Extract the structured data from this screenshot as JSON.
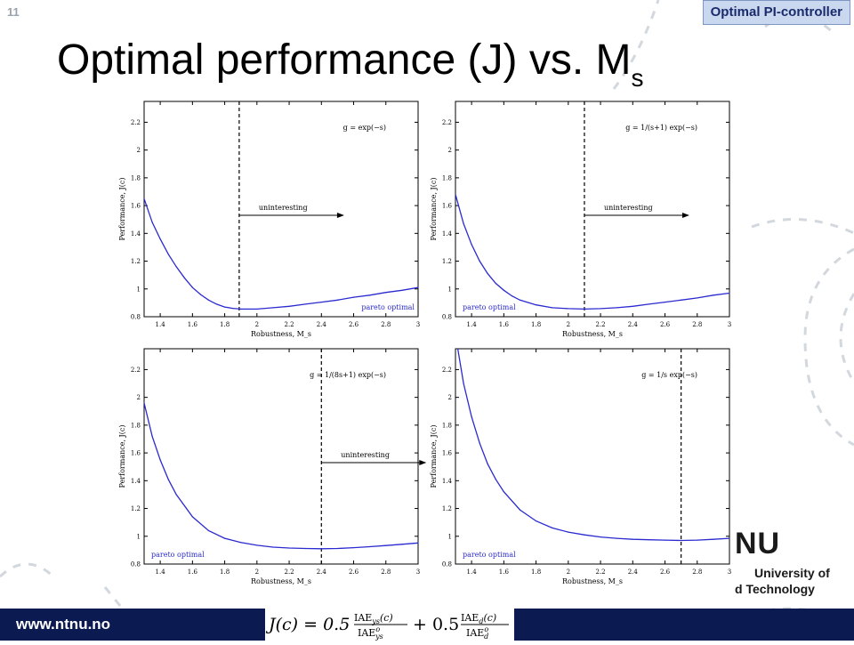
{
  "slide": {
    "number": "11",
    "section_tag": "Optimal PI-controller",
    "title_main": "Optimal performance (J) vs. M",
    "title_sub": "s"
  },
  "footer": {
    "url": "www.ntnu.no",
    "formula": {
      "lhs": "J(c) = 0.5",
      "term1_num": "IAE",
      "term1_num_sub": "ys",
      "term1_num_arg": "(c)",
      "term1_den": "IAE",
      "term1_den_sub": "ys",
      "term1_den_sup": "o",
      "plus": "+ 0.5",
      "term2_num": "IAE",
      "term2_num_sub": "d",
      "term2_num_arg": "(c)",
      "term2_den": "IAE",
      "term2_den_sub": "d",
      "term2_den_sup": "o"
    }
  },
  "logo": {
    "mark": "NU",
    "line1": "University of",
    "line2": "d Technology"
  },
  "colors": {
    "curve": "#2a2ad0",
    "annotation": "#2a2ad0",
    "footer_bg": "#0b1b52",
    "tag_bg": "#c9d8ee"
  },
  "chart_data": [
    {
      "type": "line",
      "xlabel": "Robustness, M_s",
      "ylabel": "Performance, J(c)",
      "xlim": [
        1.3,
        3.0
      ],
      "ylim": [
        0.8,
        2.35
      ],
      "xticks": [
        "1.4",
        "1.6",
        "1.8",
        "2",
        "2.2",
        "2.4",
        "2.6",
        "2.8",
        "3"
      ],
      "yticks": [
        "0.8",
        "1",
        "1.2",
        "1.4",
        "1.6",
        "1.8",
        "2",
        "2.2"
      ],
      "model_label": "g = exp(−s)",
      "pareto_label": "pareto optimal",
      "pareto_label_position": "bottom-right",
      "uninteresting_label": "uninteresting",
      "vline_x": 1.89,
      "x": [
        1.3,
        1.35,
        1.4,
        1.45,
        1.5,
        1.55,
        1.6,
        1.65,
        1.7,
        1.75,
        1.8,
        1.85,
        1.9,
        1.95,
        2.0,
        2.1,
        2.2,
        2.3,
        2.4,
        2.5,
        2.6,
        2.7,
        2.8,
        2.9,
        3.0
      ],
      "y": [
        1.65,
        1.48,
        1.36,
        1.25,
        1.16,
        1.08,
        1.01,
        0.96,
        0.92,
        0.89,
        0.87,
        0.86,
        0.855,
        0.855,
        0.855,
        0.865,
        0.875,
        0.89,
        0.905,
        0.92,
        0.94,
        0.955,
        0.975,
        0.99,
        1.01
      ]
    },
    {
      "type": "line",
      "xlabel": "Robustness, M_s",
      "ylabel": "Performance, J(c)",
      "xlim": [
        1.3,
        3.0
      ],
      "ylim": [
        0.8,
        2.35
      ],
      "xticks": [
        "1.4",
        "1.6",
        "1.8",
        "2",
        "2.2",
        "2.4",
        "2.6",
        "2.8",
        "3"
      ],
      "yticks": [
        "0.8",
        "1",
        "1.2",
        "1.4",
        "1.6",
        "1.8",
        "2",
        "2.2"
      ],
      "model_label": "g = 1/(s+1) exp(−s)",
      "pareto_label": "pareto optimal",
      "pareto_label_position": "bottom-left",
      "uninteresting_label": "uninteresting",
      "vline_x": 2.1,
      "x": [
        1.3,
        1.35,
        1.4,
        1.45,
        1.5,
        1.55,
        1.6,
        1.65,
        1.7,
        1.8,
        1.9,
        2.0,
        2.1,
        2.2,
        2.3,
        2.4,
        2.5,
        2.6,
        2.7,
        2.8,
        2.9,
        3.0
      ],
      "y": [
        1.68,
        1.47,
        1.32,
        1.2,
        1.11,
        1.04,
        0.99,
        0.95,
        0.92,
        0.885,
        0.865,
        0.858,
        0.855,
        0.858,
        0.865,
        0.875,
        0.89,
        0.905,
        0.92,
        0.935,
        0.955,
        0.97
      ]
    },
    {
      "type": "line",
      "xlabel": "Robustness, M_s",
      "ylabel": "Performance, J(c)",
      "xlim": [
        1.3,
        3.0
      ],
      "ylim": [
        0.8,
        2.35
      ],
      "xticks": [
        "1.4",
        "1.6",
        "1.8",
        "2",
        "2.2",
        "2.4",
        "2.6",
        "2.8",
        "3"
      ],
      "yticks": [
        "0.8",
        "1",
        "1.2",
        "1.4",
        "1.6",
        "1.8",
        "2",
        "2.2"
      ],
      "model_label": "g = 1/(8s+1) exp(−s)",
      "pareto_label": "pareto optimal",
      "pareto_label_position": "bottom-left",
      "uninteresting_label": "uninteresting",
      "vline_x": 2.4,
      "x": [
        1.3,
        1.35,
        1.4,
        1.45,
        1.5,
        1.6,
        1.7,
        1.8,
        1.9,
        2.0,
        2.1,
        2.2,
        2.3,
        2.4,
        2.5,
        2.6,
        2.7,
        2.8,
        2.9,
        3.0
      ],
      "y": [
        1.96,
        1.72,
        1.55,
        1.41,
        1.3,
        1.14,
        1.04,
        0.985,
        0.955,
        0.935,
        0.922,
        0.915,
        0.912,
        0.91,
        0.912,
        0.918,
        0.925,
        0.933,
        0.942,
        0.952
      ]
    },
    {
      "type": "line",
      "xlabel": "Robustness, M_s",
      "ylabel": "Performance, J(c)",
      "xlim": [
        1.3,
        3.0
      ],
      "ylim": [
        0.8,
        2.35
      ],
      "xticks": [
        "1.4",
        "1.6",
        "1.8",
        "2",
        "2.2",
        "2.4",
        "2.6",
        "2.8",
        "3"
      ],
      "yticks": [
        "0.8",
        "1",
        "1.2",
        "1.4",
        "1.6",
        "1.8",
        "2",
        "2.2"
      ],
      "model_label": "g = 1/s exp(−s)",
      "pareto_label": "pareto optimal",
      "pareto_label_position": "bottom-left",
      "uninteresting_label": "",
      "vline_x": 2.7,
      "x": [
        1.3,
        1.35,
        1.4,
        1.45,
        1.5,
        1.55,
        1.6,
        1.7,
        1.8,
        1.9,
        2.0,
        2.1,
        2.2,
        2.3,
        2.4,
        2.5,
        2.6,
        2.7,
        2.8,
        2.9,
        3.0
      ],
      "y": [
        2.45,
        2.1,
        1.86,
        1.67,
        1.52,
        1.41,
        1.32,
        1.19,
        1.11,
        1.06,
        1.03,
        1.01,
        0.995,
        0.985,
        0.978,
        0.975,
        0.972,
        0.97,
        0.972,
        0.978,
        0.985
      ]
    }
  ]
}
